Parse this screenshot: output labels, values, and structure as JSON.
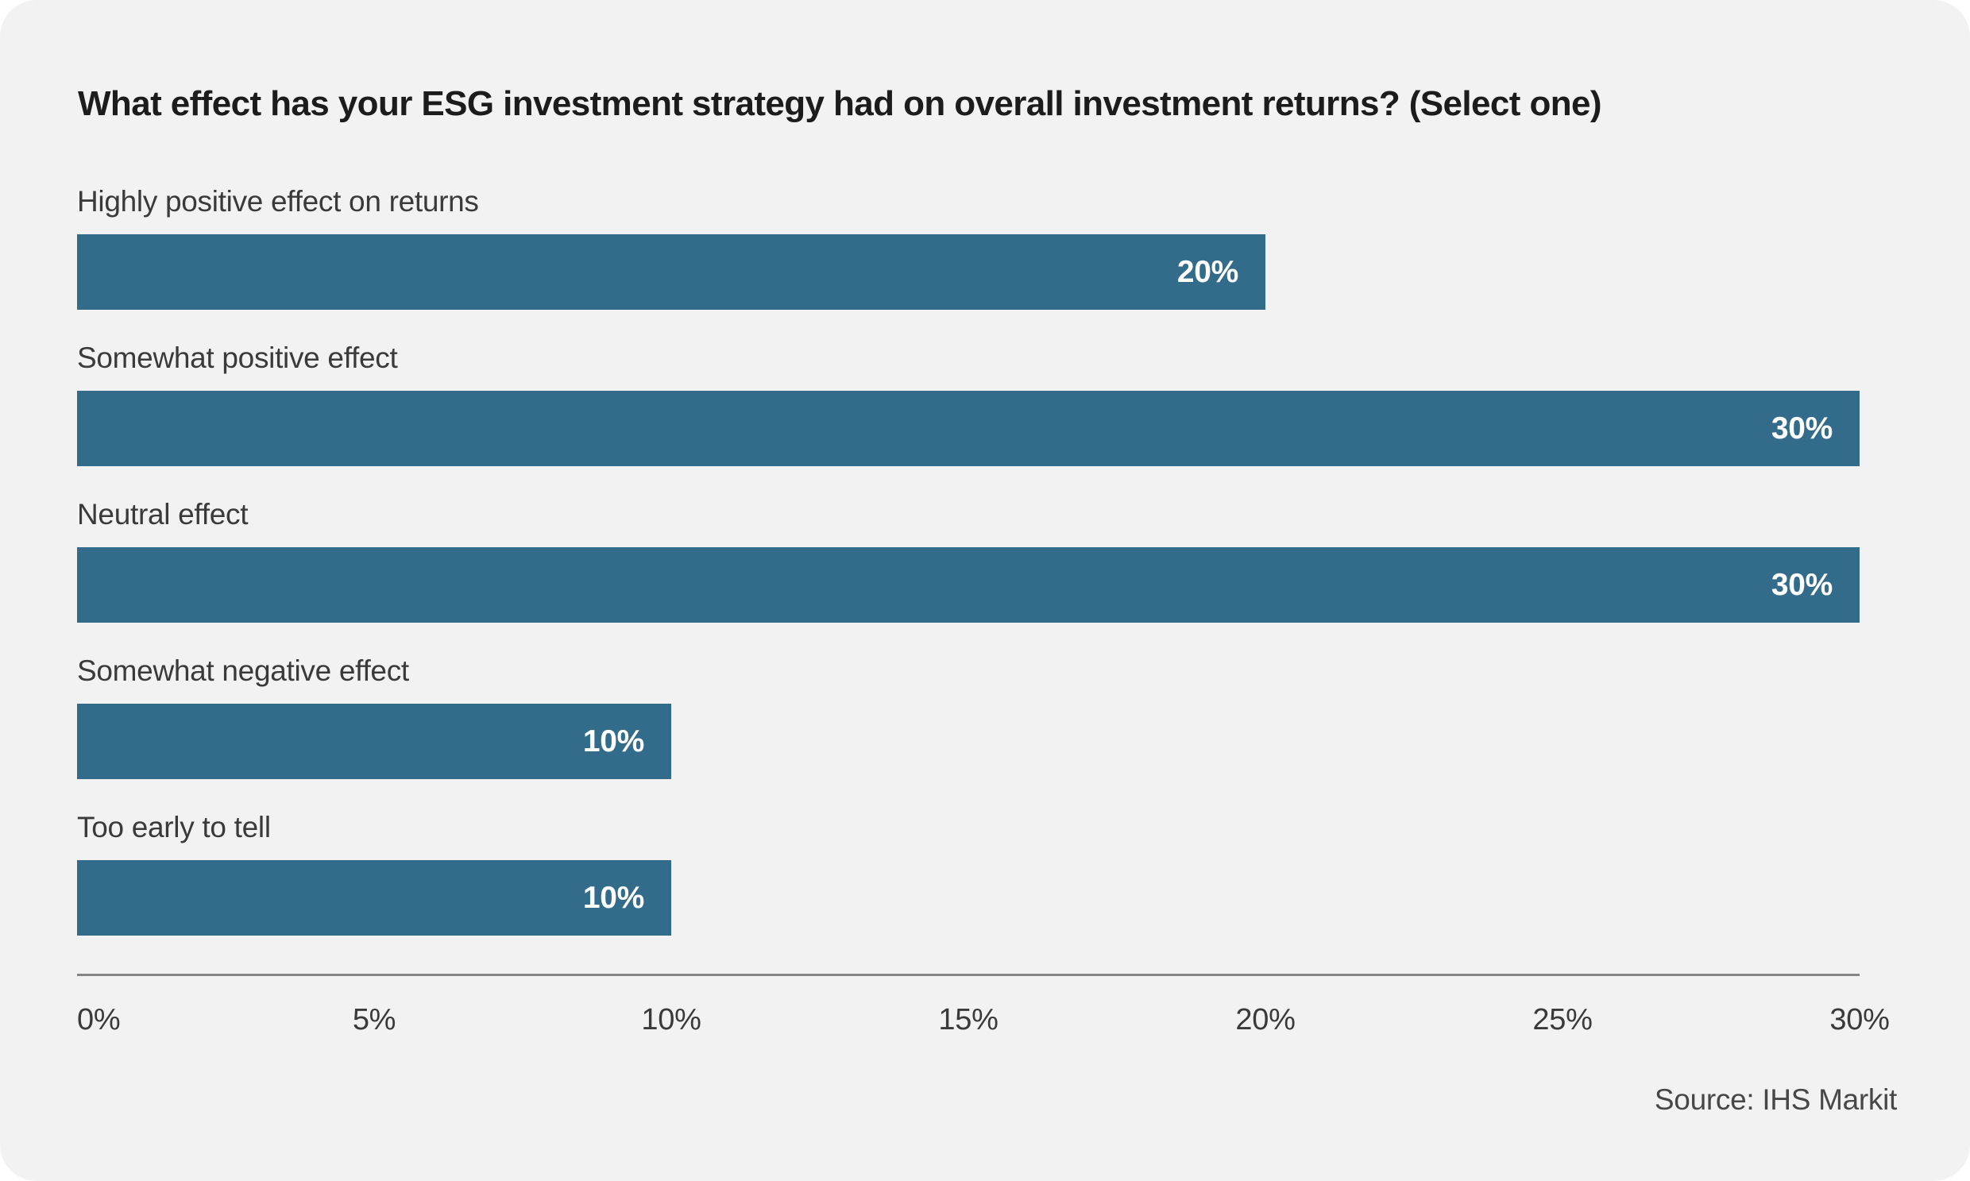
{
  "title": "What effect has your ESG investment strategy had on overall investment returns? (Select one)",
  "source": "Source: IHS Markit",
  "chart_data": {
    "type": "bar",
    "orientation": "horizontal",
    "title": "What effect has your ESG investment strategy had on overall investment returns? (Select one)",
    "categories": [
      "Highly positive effect on returns",
      "Somewhat positive effect",
      "Neutral effect",
      "Somewhat negative effect",
      "Too early to tell"
    ],
    "values": [
      20,
      30,
      30,
      10,
      10
    ],
    "value_labels": [
      "20%",
      "30%",
      "30%",
      "10%",
      "10%"
    ],
    "xlabel": "",
    "ylabel": "",
    "xlim": [
      0,
      30
    ],
    "x_tick_values": [
      0,
      5,
      10,
      15,
      20,
      25,
      30
    ],
    "x_tick_labels": [
      "0%",
      "5%",
      "10%",
      "15%",
      "20%",
      "25%",
      "30%"
    ],
    "grid": false,
    "legend": "none",
    "annotations": [
      "Source: IHS Markit"
    ],
    "colors": {
      "bar": "#336c8b",
      "bar_value_text": "#ffffff",
      "background": "#f2f2f2",
      "title_text": "#1c1c1c",
      "label_text": "#3a3a3a",
      "axis_line": "#858585"
    }
  }
}
